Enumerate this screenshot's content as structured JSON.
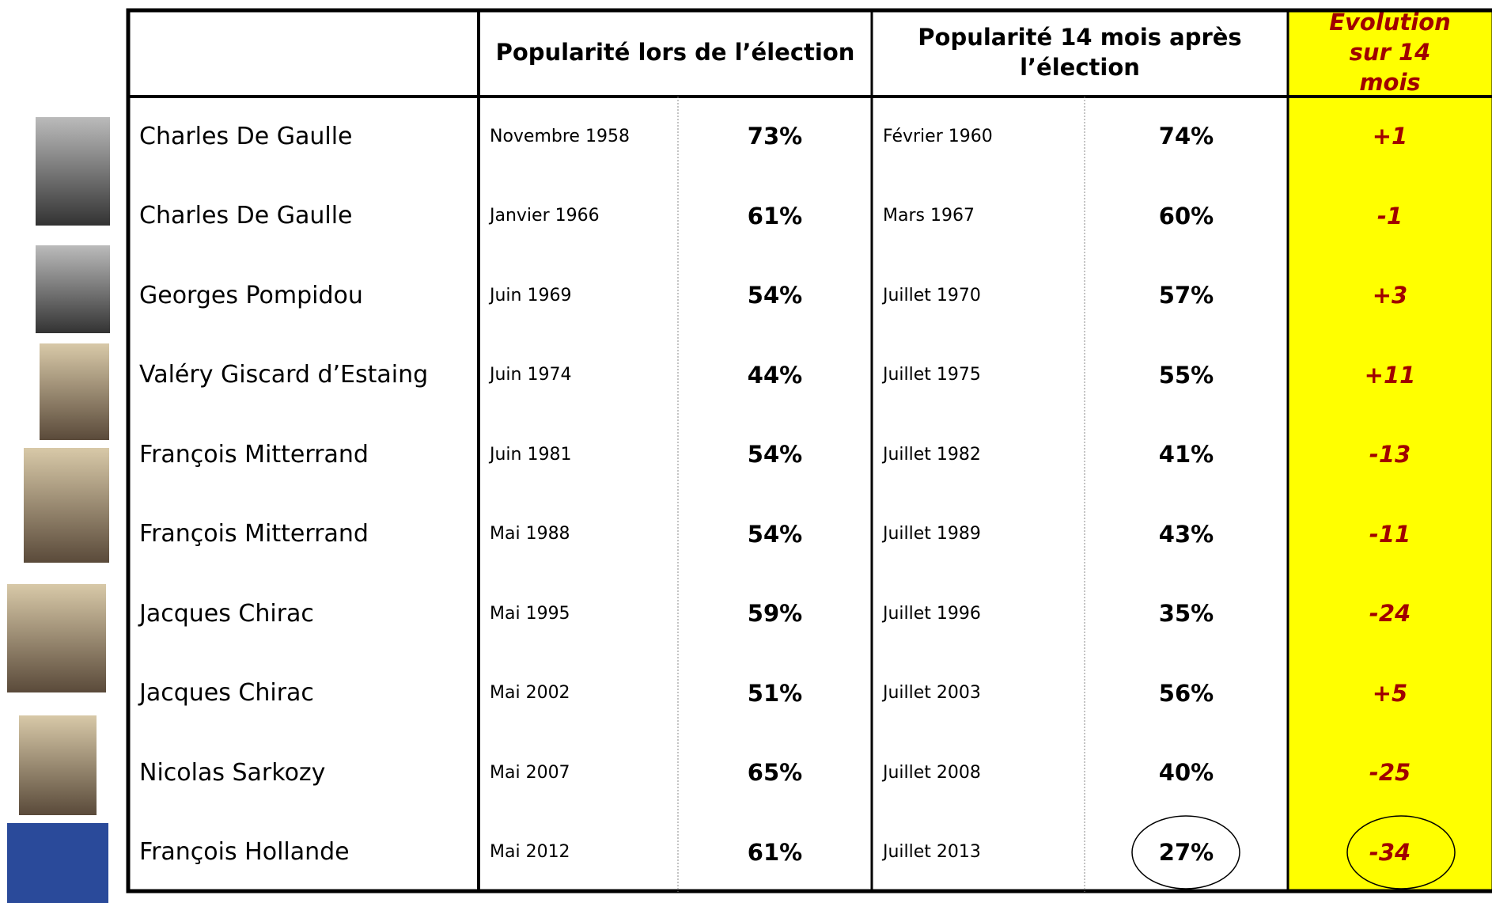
{
  "header": {
    "col_name": "",
    "col_election": "Popularité lors de l’élection",
    "col_after": "Popularité 14 mois après l’élection",
    "col_evolution": "Evolution sur 14 mois"
  },
  "table": {
    "rows": [
      [
        "Charles De Gaulle",
        "Novembre 1958",
        "73%",
        "Février 1960",
        "74%",
        "+1"
      ],
      [
        "Charles De Gaulle",
        "Janvier 1966",
        "61%",
        "Mars 1967",
        "60%",
        "-1"
      ],
      [
        "Georges Pompidou",
        "Juin 1969",
        "54%",
        "Juillet 1970",
        "57%",
        "+3"
      ],
      [
        "Valéry Giscard d’Estaing",
        "Juin 1974",
        "44%",
        "Juillet 1975",
        "55%",
        "+11"
      ],
      [
        "François Mitterrand",
        "Juin 1981",
        "54%",
        "Juillet 1982",
        "41%",
        "-13"
      ],
      [
        "François Mitterrand",
        "Mai 1988",
        "54%",
        "Juillet 1989",
        "43%",
        "-11"
      ],
      [
        "Jacques Chirac",
        "Mai 1995",
        "59%",
        "Juillet 1996",
        "35%",
        "-24"
      ],
      [
        "Jacques Chirac",
        "Mai 2002",
        "51%",
        "Juillet 2003",
        "56%",
        "+5"
      ],
      [
        "Nicolas Sarkozy",
        "Mai 2007",
        "65%",
        "Juillet 2008",
        "40%",
        "-25"
      ],
      [
        "François Hollande",
        "Mai 2012",
        "61%",
        "Juillet 2013",
        "27%",
        "-34"
      ]
    ]
  }
}
